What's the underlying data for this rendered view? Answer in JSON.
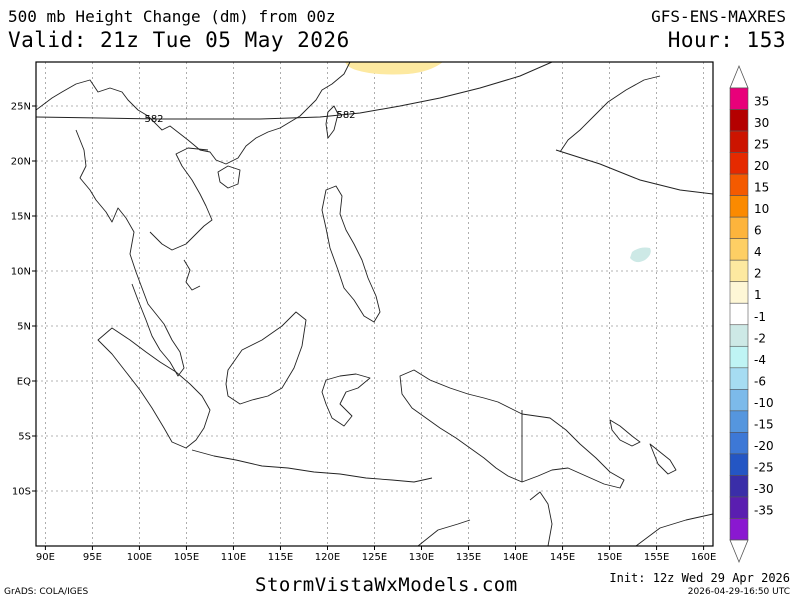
{
  "header": {
    "title": "500 mb Height Change (dm) from 00z",
    "valid": "Valid: 21z Tue 05 May 2026",
    "model": "GFS-ENS-MAXRES",
    "hour": "Hour: 153"
  },
  "footer": {
    "credit": "GrADS: COLA/IGES",
    "site": "StormVistaWxModels.com",
    "init": "Init: 12z Wed 29 Apr 2026",
    "timestamp": "2026-04-29-16:50 UTC"
  },
  "map": {
    "region": "Southeast Asia / Maritime Continent",
    "lon_range": [
      89,
      161
    ],
    "lat_range": [
      -15,
      29
    ],
    "lon_ticks": [
      "90E",
      "95E",
      "100E",
      "105E",
      "110E",
      "115E",
      "120E",
      "125E",
      "130E",
      "135E",
      "140E",
      "145E",
      "150E",
      "155E",
      "160E"
    ],
    "lat_ticks": [
      "25N",
      "20N",
      "15N",
      "10N",
      "5N",
      "EQ",
      "5S",
      "10S"
    ],
    "contour_labels": [
      "582",
      "582"
    ],
    "gridlines": "dotted"
  },
  "colorbar": {
    "labels": [
      "35",
      "30",
      "25",
      "20",
      "15",
      "10",
      "6",
      "4",
      "2",
      "1",
      "-1",
      "-2",
      "-4",
      "-6",
      "-10",
      "-15",
      "-20",
      "-25",
      "-30",
      "-35"
    ],
    "colors": [
      "#e8007a",
      "#b40000",
      "#cc1400",
      "#e52a00",
      "#f45a00",
      "#fb8a00",
      "#fdb43c",
      "#fecf64",
      "#fde9a0",
      "#fef7d6",
      "#ffffff",
      "#cde9e6",
      "#bff4f4",
      "#a6dcf2",
      "#7cbaea",
      "#5596de",
      "#3d78d6",
      "#2456c4",
      "#3a2ea8",
      "#5a1eb0",
      "#8a18d0"
    ]
  },
  "shading": [
    {
      "label": "2 to 4 dm",
      "color": "#fde9a0"
    },
    {
      "label": "-1 to -2 dm",
      "color": "#cde9e6"
    }
  ]
}
